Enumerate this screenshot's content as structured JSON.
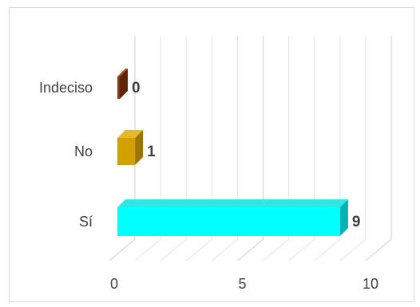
{
  "chart_data": {
    "type": "bar",
    "orientation": "horizontal",
    "style": "3d",
    "categories": [
      "Indeciso",
      "No",
      "Sí"
    ],
    "values": [
      0,
      1,
      9
    ],
    "value_labels": [
      "0",
      "1",
      "9"
    ],
    "xlim": [
      0,
      10
    ],
    "xticks": [
      0,
      5,
      10
    ],
    "xtick_labels": [
      "0",
      "5",
      "10"
    ],
    "minor_gridlines": [
      1,
      2,
      3,
      4,
      6,
      7,
      8,
      9
    ],
    "grid": true,
    "legend": "none",
    "colors": {
      "Indeciso": {
        "front": "#8b3a0e",
        "side": "#5e2408",
        "top": "#a8501f"
      },
      "No": {
        "front": "#d4a000",
        "side": "#9c7500",
        "top": "#e6b82a"
      },
      "Sí": {
        "front": "#00ffff",
        "side": "#00b3b3",
        "top": "#33e6e6"
      }
    },
    "gridline_color": "#d9d9d9",
    "label_color": "#404040"
  }
}
